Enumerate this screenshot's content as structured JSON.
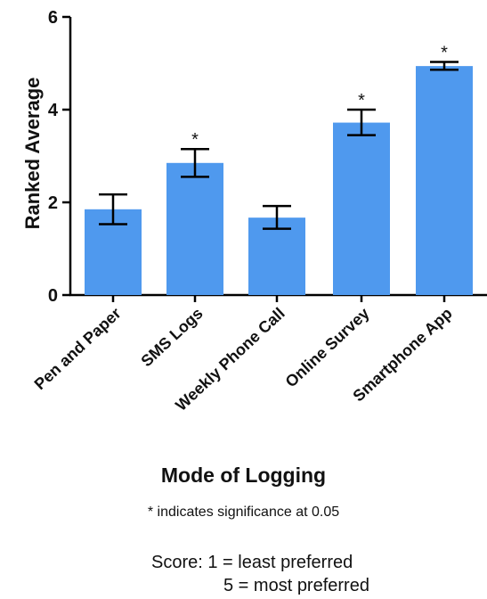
{
  "chart_data": {
    "type": "bar",
    "title": "",
    "xlabel": "Mode of Logging",
    "ylabel": "Ranked  Average",
    "ylim": [
      0,
      6
    ],
    "yticks": [
      "0",
      "2",
      "4",
      "6"
    ],
    "categories": [
      "Pen and Paper",
      "SMS Logs",
      "Weekly Phone Call",
      "Online Survey",
      "Smartphone App"
    ],
    "values": [
      1.85,
      2.85,
      1.67,
      3.72,
      4.94
    ],
    "error_low": [
      1.53,
      2.55,
      1.43,
      3.45,
      4.86
    ],
    "error_high": [
      2.17,
      3.15,
      1.92,
      4.0,
      5.03
    ],
    "significance_marker": "*",
    "significant": [
      false,
      true,
      false,
      true,
      true
    ],
    "bar_color": "#4f99ee",
    "grid": false,
    "legend": "none"
  },
  "notes": {
    "significance": "* indicates significance at 0.05",
    "score_line1": "Score: 1 = least preferred",
    "score_line2": "5 = most preferred"
  }
}
